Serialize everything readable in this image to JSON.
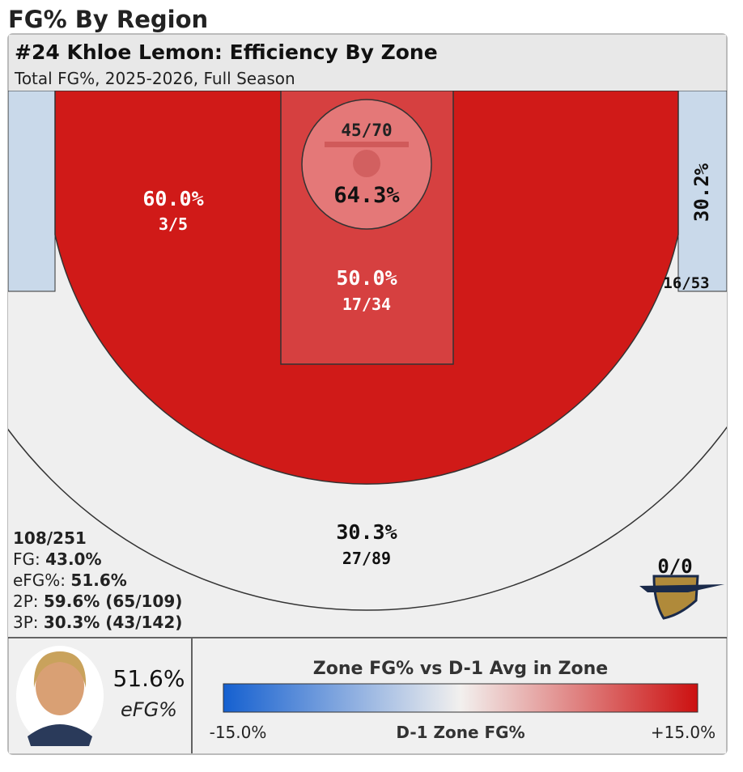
{
  "header": {
    "page_title": "FG% By Region",
    "chart_title": "#24 Khloe Lemon: Efficiency By Zone",
    "subtitle": "Total FG%, 2025-2026, Full Season"
  },
  "zones": {
    "restricted": {
      "pct": "64.3%",
      "shots": "45/70"
    },
    "left_midrange": {
      "pct": "60.0%",
      "shots": "3/5"
    },
    "paint": {
      "pct": "50.0%",
      "shots": "17/34"
    },
    "right_corner_three": {
      "pct": "30.2%",
      "shots": "16/53"
    },
    "above_break_three": {
      "pct": "30.3%",
      "shots": "27/89"
    },
    "deep": {
      "shots": "0/0"
    }
  },
  "summary": {
    "total": "108/251",
    "rows": [
      {
        "label": "FG:",
        "value": "43.0%"
      },
      {
        "label": "eFG%:",
        "value": "51.6%"
      },
      {
        "label": "2P:",
        "value": "59.6% (65/109)"
      },
      {
        "label": "3P:",
        "value": "30.3% (43/142)"
      }
    ]
  },
  "player": {
    "efg": "51.6%",
    "efg_label": "eFG%"
  },
  "legend": {
    "title": "Zone FG% vs D-1 Avg in Zone",
    "min": "-15.0%",
    "axis_label": "D-1 Zone FG%",
    "max": "+15.0%"
  }
}
